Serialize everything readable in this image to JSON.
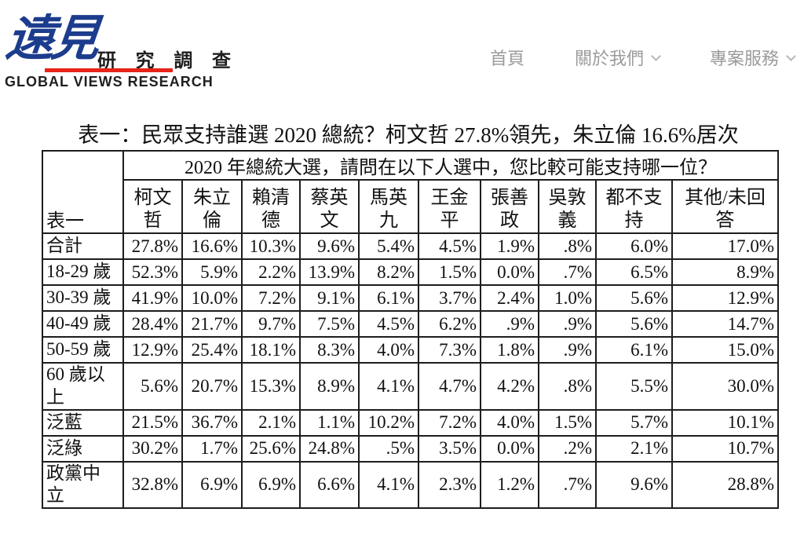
{
  "header": {
    "logo": {
      "brand_cn": "遠見",
      "brand_suffix": "研 究 調 查",
      "brand_en": "GLOBAL VIEWS RESEARCH",
      "blue": "#1c3c8d",
      "red": "#e8231a"
    },
    "nav": [
      {
        "label": "首頁",
        "has_dropdown": false
      },
      {
        "label": "關於我們",
        "has_dropdown": true
      },
      {
        "label": "專案服務",
        "has_dropdown": true
      }
    ]
  },
  "table": {
    "title": "表一：民眾支持誰選 2020 總統？柯文哲 27.8%領先，朱立倫 16.6%居次",
    "corner_label": "表一",
    "question": "2020 年總統大選，請問在以下人選中，您比較可能支持哪一位？",
    "columns": [
      {
        "name": "柯文哲",
        "display": "柯文\n哲"
      },
      {
        "name": "朱立倫"
      },
      {
        "name": "賴清德",
        "display": "賴清\n德"
      },
      {
        "name": "蔡英文",
        "display": "蔡英\n文"
      },
      {
        "name": "馬英九",
        "display": "馬英\n九"
      },
      {
        "name": "王金平"
      },
      {
        "name": "張善政",
        "display": "張善\n政"
      },
      {
        "name": "吳敦義",
        "display": "吳敦\n義"
      },
      {
        "name": "都不支持",
        "display": "都不支\n持"
      },
      {
        "name": "其他/未回答",
        "display": "其他/未回\n答"
      }
    ],
    "rows": [
      {
        "label": "合計",
        "values": [
          "27.8%",
          "16.6%",
          "10.3%",
          "9.6%",
          "5.4%",
          "4.5%",
          "1.9%",
          ".8%",
          "6.0%",
          "17.0%"
        ]
      },
      {
        "label": "18-29 歲",
        "values": [
          "52.3%",
          "5.9%",
          "2.2%",
          "13.9%",
          "8.2%",
          "1.5%",
          "0.0%",
          ".7%",
          "6.5%",
          "8.9%"
        ]
      },
      {
        "label": "30-39 歲",
        "values": [
          "41.9%",
          "10.0%",
          "7.2%",
          "9.1%",
          "6.1%",
          "3.7%",
          "2.4%",
          "1.0%",
          "5.6%",
          "12.9%"
        ]
      },
      {
        "label": "40-49 歲",
        "values": [
          "28.4%",
          "21.7%",
          "9.7%",
          "7.5%",
          "4.5%",
          "6.2%",
          ".9%",
          ".9%",
          "5.6%",
          "14.7%"
        ]
      },
      {
        "label": "50-59 歲",
        "values": [
          "12.9%",
          "25.4%",
          "18.1%",
          "8.3%",
          "4.0%",
          "7.3%",
          "1.8%",
          ".9%",
          "6.1%",
          "15.0%"
        ]
      },
      {
        "label": "60 歲以上",
        "display": "60 歲以\n上",
        "values": [
          "5.6%",
          "20.7%",
          "15.3%",
          "8.9%",
          "4.1%",
          "4.7%",
          "4.2%",
          ".8%",
          "5.5%",
          "30.0%"
        ]
      },
      {
        "label": "泛藍",
        "values": [
          "21.5%",
          "36.7%",
          "2.1%",
          "1.1%",
          "10.2%",
          "7.2%",
          "4.0%",
          "1.5%",
          "5.7%",
          "10.1%"
        ]
      },
      {
        "label": "泛綠",
        "values": [
          "30.2%",
          "1.7%",
          "25.6%",
          "24.8%",
          ".5%",
          "3.5%",
          "0.0%",
          ".2%",
          "2.1%",
          "10.7%"
        ]
      },
      {
        "label": "政黨中立",
        "display": "政黨中\n立",
        "values": [
          "32.8%",
          "6.9%",
          "6.9%",
          "6.6%",
          "4.1%",
          "2.3%",
          "1.2%",
          ".7%",
          "9.6%",
          "28.8%"
        ]
      }
    ]
  }
}
